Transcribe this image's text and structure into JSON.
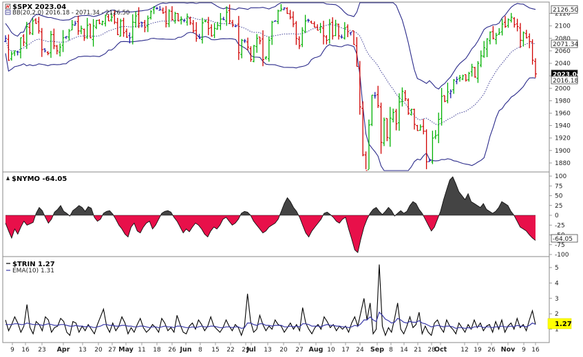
{
  "panels": {
    "price": {
      "title": "$SPX 2023.04",
      "bb_label": "BB(20,2.0) 2016.18 - 2071.34 - 2126.50",
      "ticks": [
        1880,
        1900,
        1920,
        1940,
        1960,
        1980,
        2000,
        2020,
        2040,
        2060,
        2080,
        2100,
        2120
      ],
      "badges": [
        {
          "value": 2126.5,
          "label": "2126.50",
          "style": "outline"
        },
        {
          "value": 2071.34,
          "label": "2071.34",
          "style": "outline"
        },
        {
          "value": 2023.04,
          "label": "2023.04",
          "style": "filled"
        },
        {
          "value": 2016.18,
          "label": "2016.18",
          "style": "outline"
        }
      ]
    },
    "nymo": {
      "title": "$NYMO -64.05",
      "ticks": [
        -100,
        -75,
        -50,
        -25,
        0,
        25,
        50,
        75,
        100
      ],
      "badge": "-64.05"
    },
    "trin": {
      "title": "$TRIN 1.27",
      "ema_label": "EMA(10) 1.31",
      "ticks": [
        1,
        2,
        3,
        4,
        5
      ],
      "badge": "1.27"
    }
  },
  "x_axis": {
    "labels": [
      "9",
      "16",
      "23",
      "Apr",
      "13",
      "20",
      "27",
      "May",
      "11",
      "18",
      "26",
      "Jun",
      "8",
      "15",
      "22",
      "29",
      "Jul",
      "13",
      "20",
      "27",
      "Aug",
      "10",
      "17",
      "24",
      "Sep",
      "8",
      "14",
      "21",
      "28",
      "Oct",
      "12",
      "19",
      "26",
      "Nov",
      "9",
      "16"
    ],
    "bold_labels": [
      "Apr",
      "May",
      "Jun",
      "Jul",
      "Aug",
      "Sep",
      "Oct",
      "Nov"
    ]
  },
  "colors": {
    "up": "#00b000",
    "down": "#d00000",
    "neutral": "#1a1aaa",
    "band": "#2a2a8a",
    "nymo_pos": "#444444",
    "nymo_neg": "#e8104a",
    "ema": "#3838a8",
    "trin_badge": "#ffff00"
  },
  "chart_data": [
    {
      "type": "ohlc",
      "title": "$SPX 2023.04",
      "x": [
        "Mar 9",
        "Mar 10",
        "Mar 11",
        "Mar 12",
        "Mar 13",
        "Mar 16",
        "Mar 17",
        "Mar 18",
        "Mar 19",
        "Mar 20",
        "Mar 23",
        "Mar 24",
        "Mar 25",
        "Mar 26",
        "Mar 27",
        "Mar 30",
        "Mar 31",
        "Apr 1",
        "Apr 2",
        "Apr 6",
        "Apr 7",
        "Apr 8",
        "Apr 9",
        "Apr 10",
        "Apr 13",
        "Apr 14",
        "Apr 15",
        "Apr 16",
        "Apr 17",
        "Apr 20",
        "Apr 21",
        "Apr 22",
        "Apr 23",
        "Apr 24",
        "Apr 27",
        "Apr 28",
        "Apr 29",
        "Apr 30",
        "May 1",
        "May 4",
        "May 5",
        "May 6",
        "May 7",
        "May 8",
        "May 11",
        "May 12",
        "May 13",
        "May 14",
        "May 15",
        "May 18",
        "May 19",
        "May 20",
        "May 21",
        "May 22",
        "May 26",
        "May 27",
        "May 28",
        "May 29",
        "Jun 1",
        "Jun 2",
        "Jun 3",
        "Jun 4",
        "Jun 5",
        "Jun 8",
        "Jun 9",
        "Jun 10",
        "Jun 11",
        "Jun 12",
        "Jun 15",
        "Jun 16",
        "Jun 17",
        "Jun 18",
        "Jun 19",
        "Jun 22",
        "Jun 23",
        "Jun 24",
        "Jun 25",
        "Jun 26",
        "Jun 29",
        "Jun 30",
        "Jul 1",
        "Jul 2",
        "Jul 6",
        "Jul 7",
        "Jul 8",
        "Jul 9",
        "Jul 10",
        "Jul 13",
        "Jul 14",
        "Jul 15",
        "Jul 16",
        "Jul 17",
        "Jul 20",
        "Jul 21",
        "Jul 22",
        "Jul 23",
        "Jul 24",
        "Jul 27",
        "Jul 28",
        "Jul 29",
        "Jul 30",
        "Jul 31",
        "Aug 3",
        "Aug 4",
        "Aug 5",
        "Aug 6",
        "Aug 7",
        "Aug 10",
        "Aug 11",
        "Aug 12",
        "Aug 13",
        "Aug 14",
        "Aug 17",
        "Aug 18",
        "Aug 19",
        "Aug 20",
        "Aug 21",
        "Aug 24",
        "Aug 25",
        "Aug 26",
        "Aug 27",
        "Aug 28",
        "Aug 31",
        "Sep 1",
        "Sep 2",
        "Sep 3",
        "Sep 4",
        "Sep 8",
        "Sep 9",
        "Sep 10",
        "Sep 11",
        "Sep 14",
        "Sep 15",
        "Sep 16",
        "Sep 17",
        "Sep 18",
        "Sep 21",
        "Sep 22",
        "Sep 23",
        "Sep 24",
        "Sep 25",
        "Sep 28",
        "Sep 29",
        "Sep 30",
        "Oct 1",
        "Oct 2",
        "Oct 5",
        "Oct 6",
        "Oct 7",
        "Oct 8",
        "Oct 9",
        "Oct 12",
        "Oct 13",
        "Oct 14",
        "Oct 15",
        "Oct 16",
        "Oct 19",
        "Oct 20",
        "Oct 21",
        "Oct 22",
        "Oct 23",
        "Oct 26",
        "Oct 27",
        "Oct 28",
        "Oct 29",
        "Oct 30",
        "Nov 2",
        "Nov 3",
        "Nov 4",
        "Nov 5",
        "Nov 6",
        "Nov 9",
        "Nov 10",
        "Nov 11",
        "Nov 12",
        "Nov 13"
      ],
      "close": [
        2080,
        2045,
        2055,
        2060,
        2058,
        2081,
        2074,
        2099,
        2089,
        2108,
        2104,
        2092,
        2062,
        2060,
        2056,
        2086,
        2068,
        2060,
        2066,
        2081,
        2083,
        2092,
        2102,
        2104,
        2092,
        2096,
        2081,
        2101,
        2081,
        2100,
        2109,
        2104,
        2107,
        2117,
        2108,
        2114,
        2106,
        2086,
        2108,
        2089,
        2082,
        2081,
        2106,
        2116,
        2104,
        2105,
        2098,
        2112,
        2123,
        2130,
        2128,
        2126,
        2121,
        2104,
        2124,
        2110,
        2120,
        2108,
        2111,
        2109,
        2115,
        2105,
        2092,
        2080,
        2080,
        2105,
        2108,
        2096,
        2084,
        2096,
        2101,
        2111,
        2110,
        2122,
        2108,
        2101,
        2100,
        2057,
        2077,
        2076,
        2066,
        2046,
        2068,
        2080,
        2076,
        2046,
        2050,
        2077,
        2106,
        2108,
        2124,
        2127,
        2129,
        2120,
        2114,
        2103,
        2080,
        2068,
        2093,
        2108,
        2109,
        2104,
        2098,
        2093,
        2099,
        2084,
        2077,
        2104,
        2084,
        2103,
        2084,
        2082,
        2097,
        2091,
        2090,
        2070,
        2035,
        1970,
        1893,
        1868,
        1941,
        1989,
        1988,
        1972,
        1913,
        1949,
        1921,
        1952,
        1961,
        1943,
        1978,
        1995,
        1983,
        1960,
        1966,
        1942,
        1932,
        1938,
        1931,
        1882,
        1884,
        1920,
        1924,
        1950,
        1987,
        1979,
        1994,
        1995,
        2013,
        2014,
        2017,
        2020,
        2013,
        2024,
        2034,
        2018,
        2040,
        2052,
        2065,
        2079,
        2090,
        2080,
        2085,
        2089,
        2103,
        2099,
        2110,
        2114,
        2102,
        2099,
        2077,
        2089,
        2081,
        2075,
        2045,
        2023
      ],
      "bb_upper_at_end": 2126.5,
      "bb_mid_at_end": 2071.34,
      "bb_lower_at_end": 2016.18,
      "ylim": [
        1870,
        2135
      ]
    },
    {
      "type": "area",
      "title": "$NYMO -64.05",
      "x_count": 180,
      "values": [
        -20,
        -40,
        -58,
        -35,
        -48,
        -30,
        -15,
        -25,
        -22,
        -18,
        5,
        20,
        12,
        -5,
        -20,
        -10,
        8,
        15,
        25,
        10,
        5,
        -2,
        12,
        18,
        25,
        20,
        10,
        22,
        18,
        -5,
        -15,
        -10,
        5,
        10,
        12,
        3,
        -10,
        -25,
        -35,
        -48,
        -55,
        -30,
        -20,
        -40,
        -45,
        -30,
        -20,
        -15,
        -35,
        -25,
        -10,
        5,
        10,
        12,
        8,
        -5,
        -15,
        -30,
        -45,
        -35,
        -42,
        -30,
        -20,
        -25,
        -35,
        -48,
        -55,
        -40,
        -30,
        -35,
        -25,
        -10,
        -5,
        -15,
        -25,
        -20,
        -10,
        5,
        10,
        8,
        0,
        -15,
        -25,
        -35,
        -45,
        -40,
        -30,
        -25,
        -20,
        -10,
        10,
        30,
        45,
        35,
        20,
        10,
        -5,
        -25,
        -45,
        -55,
        -40,
        -30,
        -20,
        -10,
        5,
        8,
        2,
        -5,
        -15,
        -20,
        -10,
        -5,
        -35,
        -60,
        -88,
        -95,
        -60,
        -30,
        -10,
        5,
        15,
        20,
        10,
        2,
        10,
        20,
        12,
        -2,
        5,
        12,
        5,
        10,
        25,
        35,
        30,
        15,
        5,
        -10,
        -25,
        -40,
        -30,
        -10,
        10,
        40,
        65,
        90,
        98,
        80,
        60,
        50,
        40,
        55,
        35,
        30,
        25,
        20,
        30,
        15,
        10,
        5,
        10,
        20,
        35,
        30,
        25,
        10,
        0,
        -15,
        -30,
        -35,
        -40,
        -50,
        -58,
        -64
      ],
      "ylim": [
        -100,
        100
      ]
    },
    {
      "type": "line",
      "title": "$TRIN 1.27",
      "series": [
        {
          "name": "$TRIN",
          "values": [
            1.6,
            0.9,
            1.3,
            1.8,
            1.4,
            0.8,
            1.2,
            2.6,
            1.1,
            0.7,
            1.5,
            1.3,
            0.9,
            1.8,
            1.6,
            0.8,
            1.1,
            1.2,
            1.7,
            1.5,
            0.8,
            0.6,
            1.5,
            1.4,
            0.8,
            1.2,
            0.9,
            1.3,
            1.0,
            0.7,
            1.3,
            1.8,
            2.3,
            1.2,
            0.8,
            1.4,
            0.9,
            1.2,
            1.8,
            1.4,
            0.7,
            1.1,
            0.8,
            1.3,
            1.7,
            1.1,
            0.8,
            1.0,
            1.3,
            1.1,
            0.8,
            1.7,
            1.4,
            0.9,
            1.1,
            0.8,
            1.9,
            1.3,
            0.8,
            0.7,
            1.2,
            1.4,
            1.0,
            1.6,
            1.3,
            0.9,
            1.2,
            1.8,
            1.2,
            1.0,
            0.8,
            1.1,
            1.6,
            1.2,
            0.9,
            1.3,
            1.1,
            0.6,
            1.2,
            3.3,
            1.5,
            0.8,
            1.0,
            1.9,
            1.3,
            0.9,
            1.2,
            1.0,
            1.6,
            1.3,
            1.2,
            0.8,
            1.1,
            1.4,
            1.0,
            1.3,
            0.9,
            2.4,
            1.4,
            1.0,
            0.7,
            1.1,
            1.3,
            1.0,
            1.8,
            1.5,
            1.1,
            1.3,
            0.9,
            1.2,
            1.0,
            1.2,
            0.8,
            1.4,
            1.8,
            1.2,
            2.1,
            3.0,
            1.6,
            2.7,
            0.7,
            1.0,
            5.2,
            1.2,
            0.6,
            1.1,
            0.8,
            1.7,
            2.7,
            1.0,
            0.7,
            1.2,
            1.8,
            1.1,
            1.3,
            2.1,
            0.7,
            1.2,
            0.8,
            0.6,
            1.4,
            1.6,
            1.1,
            0.8,
            1.6,
            1.2,
            1.0,
            0.7,
            1.4,
            1.1,
            0.8,
            1.3,
            1.0,
            1.6,
            1.1,
            1.4,
            0.9,
            1.2,
            1.3,
            0.8,
            1.5,
            1.0,
            1.6,
            0.8,
            1.2,
            1.4,
            1.0,
            1.7,
            1.1,
            1.3,
            0.9,
            1.6,
            2.2,
            1.3
          ]
        },
        {
          "name": "EMA(10)",
          "values": [
            1.3,
            1.3,
            1.3,
            1.35,
            1.35,
            1.3,
            1.3,
            1.4,
            1.35,
            1.3,
            1.3,
            1.3,
            1.25,
            1.3,
            1.35,
            1.3,
            1.25,
            1.25,
            1.3,
            1.3,
            1.25,
            1.2,
            1.2,
            1.25,
            1.2,
            1.2,
            1.15,
            1.2,
            1.15,
            1.1,
            1.15,
            1.2,
            1.3,
            1.3,
            1.25,
            1.25,
            1.2,
            1.2,
            1.25,
            1.25,
            1.2,
            1.2,
            1.15,
            1.15,
            1.2,
            1.2,
            1.15,
            1.1,
            1.15,
            1.15,
            1.1,
            1.15,
            1.2,
            1.15,
            1.15,
            1.1,
            1.2,
            1.2,
            1.15,
            1.1,
            1.1,
            1.15,
            1.1,
            1.15,
            1.2,
            1.15,
            1.15,
            1.2,
            1.2,
            1.15,
            1.1,
            1.1,
            1.15,
            1.15,
            1.1,
            1.15,
            1.15,
            1.05,
            1.1,
            1.4,
            1.4,
            1.3,
            1.25,
            1.35,
            1.35,
            1.25,
            1.25,
            1.2,
            1.25,
            1.25,
            1.25,
            1.15,
            1.15,
            1.2,
            1.15,
            1.2,
            1.15,
            1.35,
            1.35,
            1.3,
            1.2,
            1.2,
            1.2,
            1.15,
            1.25,
            1.3,
            1.25,
            1.25,
            1.2,
            1.2,
            1.15,
            1.15,
            1.1,
            1.15,
            1.25,
            1.2,
            1.35,
            1.6,
            1.6,
            1.8,
            1.6,
            1.5,
            2.1,
            1.9,
            1.65,
            1.55,
            1.4,
            1.45,
            1.7,
            1.6,
            1.45,
            1.4,
            1.5,
            1.45,
            1.45,
            1.55,
            1.4,
            1.35,
            1.25,
            1.15,
            1.2,
            1.25,
            1.2,
            1.15,
            1.2,
            1.2,
            1.15,
            1.05,
            1.1,
            1.1,
            1.05,
            1.1,
            1.05,
            1.15,
            1.15,
            1.2,
            1.1,
            1.15,
            1.15,
            1.1,
            1.15,
            1.15,
            1.2,
            1.15,
            1.15,
            1.2,
            1.15,
            1.25,
            1.2,
            1.2,
            1.15,
            1.25,
            1.4,
            1.31
          ]
        }
      ],
      "ylim": [
        0.4,
        5.4
      ]
    }
  ]
}
